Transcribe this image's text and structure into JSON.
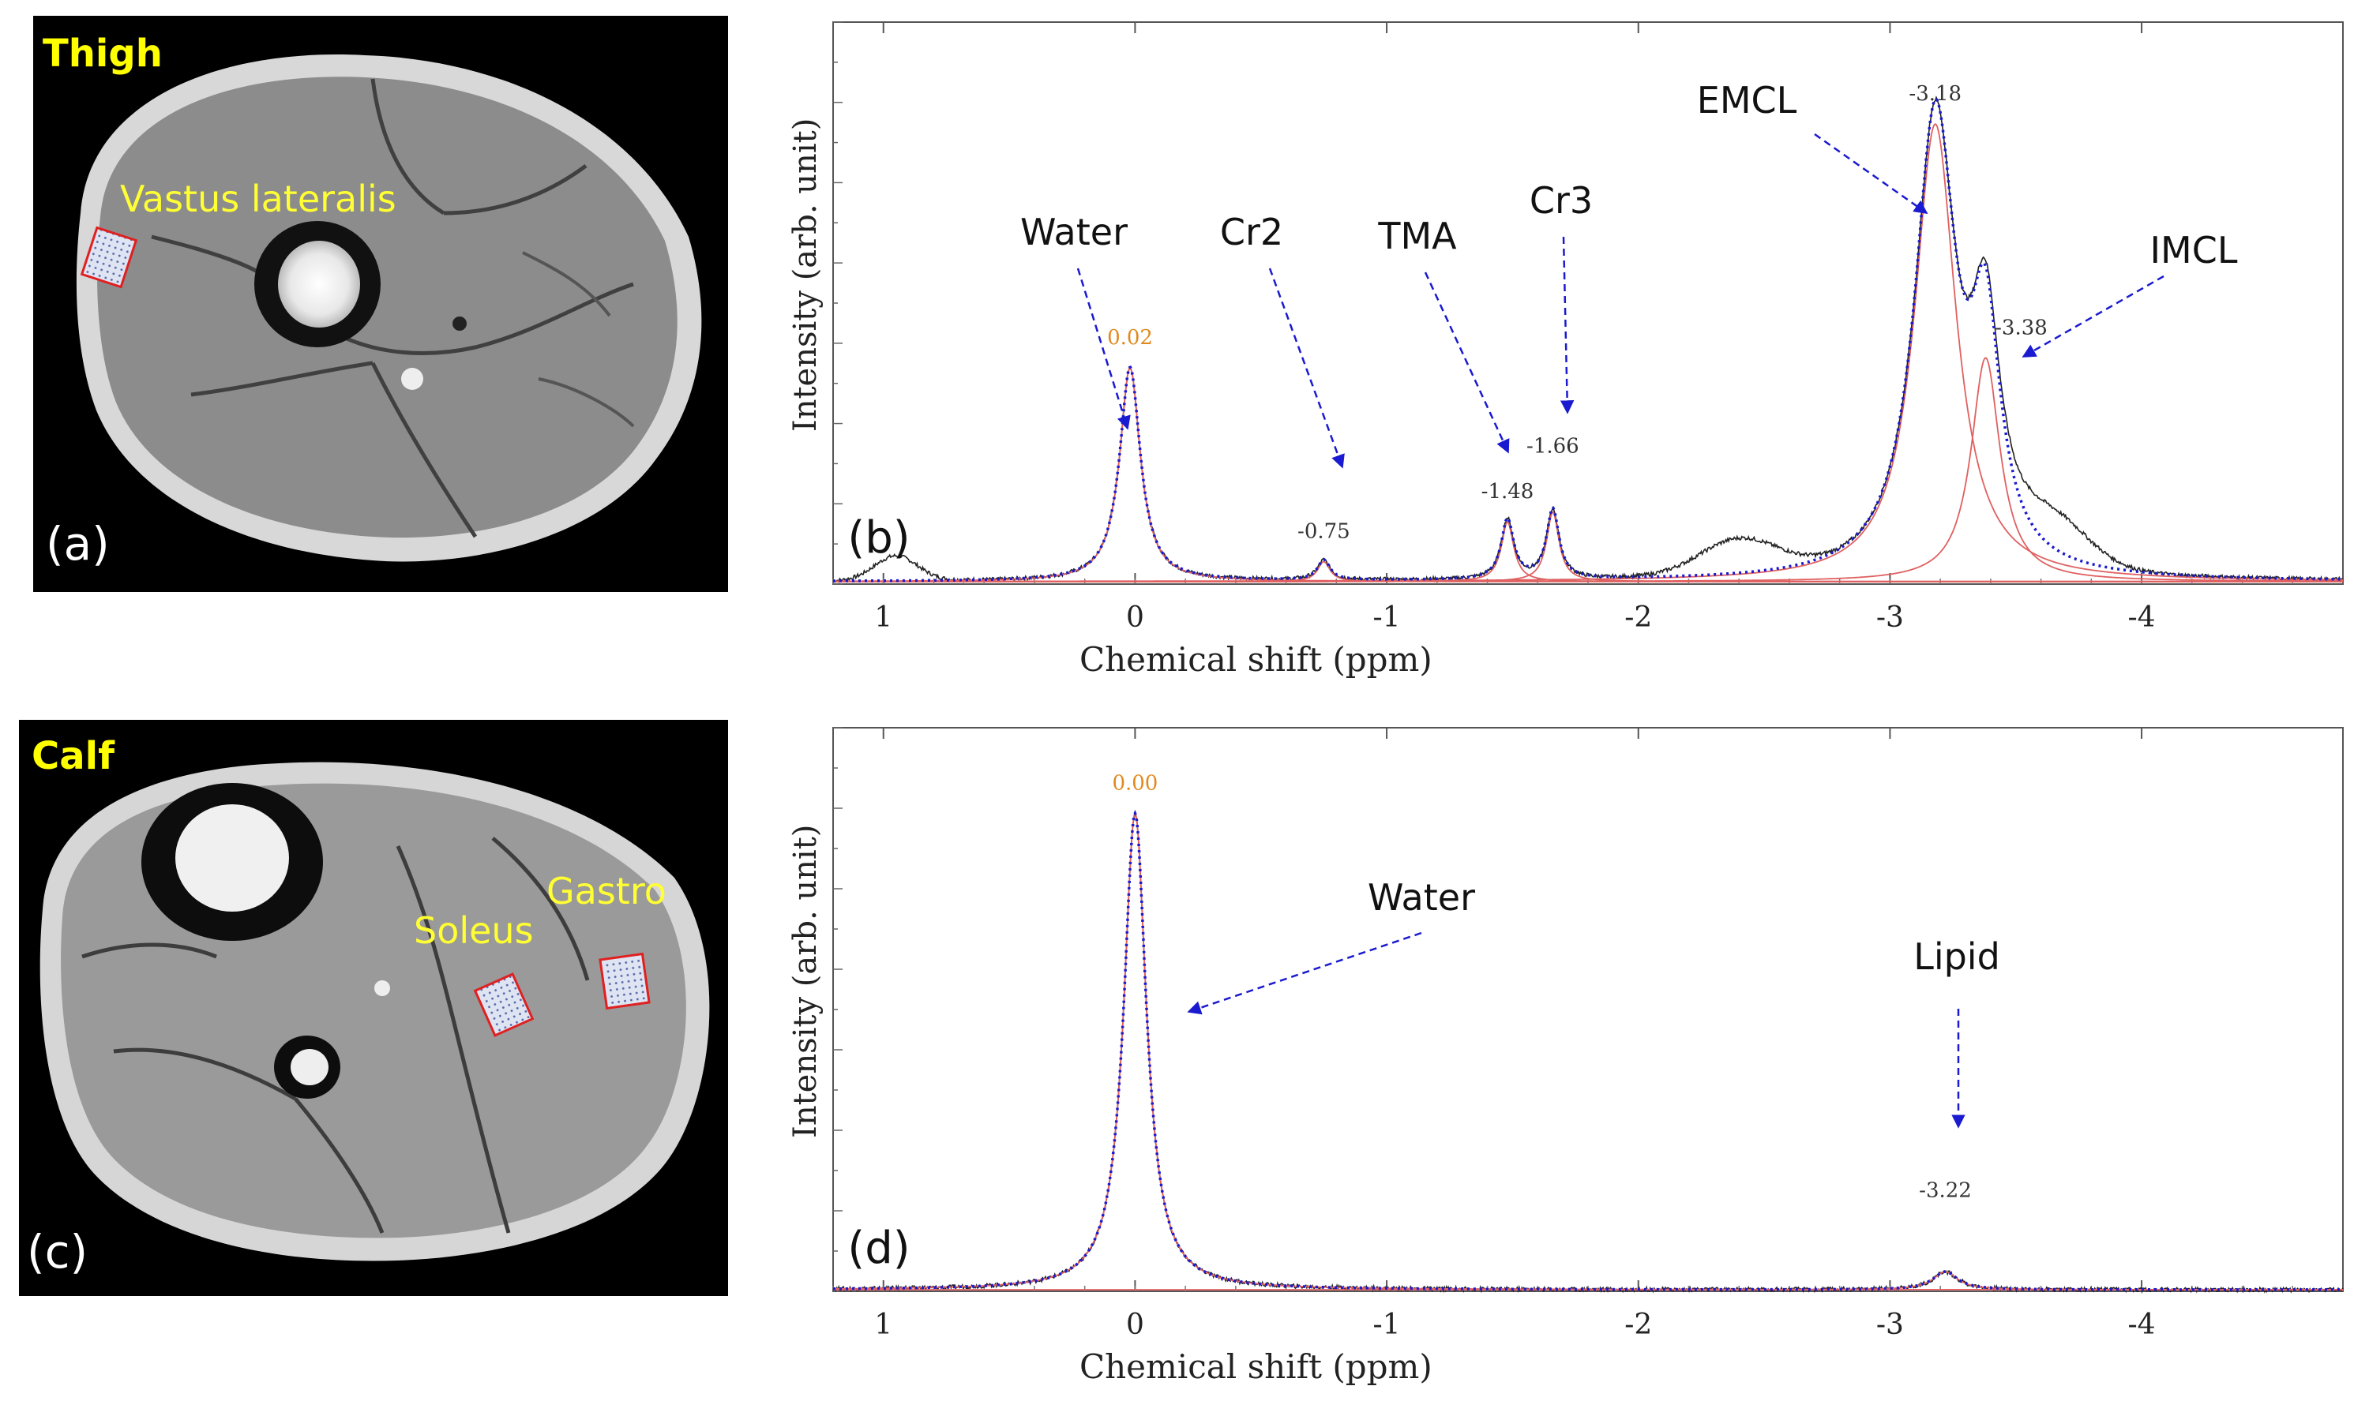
{
  "panel_a": {
    "title": "Thigh",
    "roi_label": "Vastus lateralis",
    "letter": "(a)"
  },
  "panel_c": {
    "title": "Calf",
    "roi_labels": [
      "Soleus",
      "Gastro"
    ],
    "letter": "(c)"
  },
  "colors": {
    "measured": "#222222",
    "fit_component": "#e06060",
    "fit_total": "#1a1ad0",
    "peak_label_highlight": "#e08a1e",
    "arrow": "#1a1ad0",
    "mri_label": "#ffff33",
    "roi_border": "#e02020"
  },
  "chart_data": [
    {
      "type": "line",
      "panel": "(b)",
      "xlabel": "Chemical shift (ppm)",
      "ylabel": "Intensity (arb. unit)",
      "xlim": [
        1.2,
        -4.8
      ],
      "ylim": [
        0,
        1.13
      ],
      "x_ticks": [
        1,
        0,
        -1,
        -2,
        -3,
        -4
      ],
      "x_tick_labels": [
        "1",
        "0",
        "-1",
        "-2",
        "-3",
        "-4"
      ],
      "peaks": [
        {
          "name": "Water",
          "center": 0.02,
          "amp": 0.43,
          "width": 0.05,
          "label": "0.02",
          "highlight": true
        },
        {
          "name": "Cr2",
          "center": -0.75,
          "amp": 0.04,
          "width": 0.03,
          "label": "-0.75",
          "highlight": false
        },
        {
          "name": "TMA",
          "center": -1.48,
          "amp": 0.12,
          "width": 0.03,
          "label": "-1.48",
          "highlight": false
        },
        {
          "name": "Cr3",
          "center": -1.66,
          "amp": 0.14,
          "width": 0.03,
          "label": "-1.66",
          "highlight": false
        },
        {
          "name": "EMCL",
          "center": -3.18,
          "amp": 0.92,
          "width": 0.1,
          "label": "-3.18",
          "highlight": false
        },
        {
          "name": "IMCL",
          "center": -3.38,
          "amp": 0.45,
          "width": 0.07,
          "label": "-3.38",
          "highlight": false
        }
      ],
      "baseline": 0.005,
      "measured_extras": [
        {
          "center": 0.95,
          "amp": 0.05,
          "width": 0.12
        },
        {
          "center": -2.4,
          "amp": 0.07,
          "width": 0.22
        },
        {
          "center": -3.65,
          "amp": 0.08,
          "width": 0.2
        }
      ],
      "annotations": [
        "Water",
        "Cr2",
        "TMA",
        "Cr3",
        "EMCL",
        "IMCL"
      ]
    },
    {
      "type": "line",
      "panel": "(d)",
      "xlabel": "Chemical shift (ppm)",
      "ylabel": "Intensity (arb. unit)",
      "xlim": [
        1.2,
        -4.8
      ],
      "ylim": [
        0,
        1.1
      ],
      "x_ticks": [
        1,
        0,
        -1,
        -2,
        -3,
        -4
      ],
      "x_tick_labels": [
        "1",
        "0",
        "-1",
        "-2",
        "-3",
        "-4"
      ],
      "peaks": [
        {
          "name": "Water",
          "center": 0.0,
          "amp": 0.93,
          "width": 0.055,
          "label": "0.00",
          "highlight": true
        },
        {
          "name": "Lipid",
          "center": -3.22,
          "amp": 0.035,
          "width": 0.06,
          "label": "-3.22",
          "highlight": false
        }
      ],
      "baseline": 0.003,
      "measured_extras": [],
      "annotations": [
        "Water",
        "Lipid"
      ]
    }
  ]
}
